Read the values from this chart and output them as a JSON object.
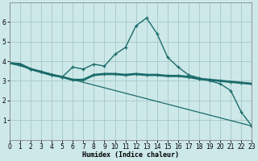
{
  "xlabel": "Humidex (Indice chaleur)",
  "xlim": [
    0,
    23
  ],
  "ylim": [
    0,
    7
  ],
  "yticks": [
    1,
    2,
    3,
    4,
    5,
    6
  ],
  "xticks": [
    0,
    1,
    2,
    3,
    4,
    5,
    6,
    7,
    8,
    9,
    10,
    11,
    12,
    13,
    14,
    15,
    16,
    17,
    18,
    19,
    20,
    21,
    22,
    23
  ],
  "xtick_labels": [
    "0",
    "1",
    "2",
    "3",
    "4",
    "5",
    "6",
    "7",
    "8",
    "9",
    "10",
    "11",
    "12",
    "13",
    "14",
    "15",
    "16",
    "17",
    "18",
    "19",
    "20",
    "21",
    "22",
    "23"
  ],
  "bg_color": "#cde8e8",
  "grid_color": "#aacccc",
  "line_color": "#1a6b6b",
  "curve1_x": [
    0,
    1,
    2,
    3,
    4,
    5,
    6,
    7,
    8,
    9,
    10,
    11,
    12,
    13,
    14,
    15,
    16,
    17,
    18,
    19,
    20,
    21,
    22,
    23
  ],
  "curve1_y": [
    3.9,
    3.85,
    3.6,
    3.45,
    3.3,
    3.2,
    3.05,
    3.05,
    3.3,
    3.35,
    3.35,
    3.3,
    3.35,
    3.3,
    3.3,
    3.25,
    3.25,
    3.2,
    3.1,
    3.05,
    3.0,
    2.95,
    2.9,
    2.85
  ],
  "curve2_x": [
    0,
    1,
    2,
    3,
    4,
    5,
    6,
    7,
    8,
    9,
    10,
    11,
    12,
    13,
    14,
    15,
    16,
    17,
    18,
    19,
    20,
    21,
    22,
    23
  ],
  "curve2_y": [
    3.9,
    3.85,
    3.6,
    3.45,
    3.3,
    3.2,
    3.7,
    3.6,
    3.85,
    3.75,
    4.35,
    4.7,
    5.8,
    6.2,
    5.4,
    4.2,
    3.7,
    3.3,
    3.15,
    3.0,
    2.85,
    2.5,
    1.4,
    0.7
  ],
  "curve3_x": [
    0,
    23
  ],
  "curve3_y": [
    3.9,
    0.7
  ]
}
